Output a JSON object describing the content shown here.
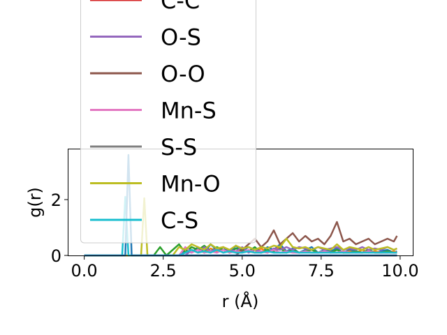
{
  "chart_data": {
    "type": "line",
    "xlabel": "r (Å)",
    "ylabel": "g(r)",
    "xlim": [
      -0.5,
      10.4
    ],
    "ylim": [
      0,
      3.8
    ],
    "x_ticks": [
      0.0,
      2.5,
      5.0,
      7.5,
      10.0
    ],
    "x_tick_labels": [
      "0.0",
      "2.5",
      "5.0",
      "7.5",
      "10.0"
    ],
    "y_ticks": [
      0,
      2
    ],
    "y_tick_labels": [
      "0",
      "2"
    ],
    "legend_position": "upper-left (overflowing above the axes)",
    "x": [
      0.0,
      0.5,
      1.0,
      1.2,
      1.3,
      1.4,
      1.5,
      1.6,
      1.8,
      1.9,
      2.0,
      2.2,
      2.4,
      2.6,
      2.8,
      3.0,
      3.2,
      3.4,
      3.6,
      3.8,
      4.0,
      4.2,
      4.4,
      4.6,
      4.8,
      5.0,
      5.2,
      5.4,
      5.6,
      5.8,
      6.0,
      6.2,
      6.4,
      6.6,
      6.8,
      7.0,
      7.2,
      7.4,
      7.6,
      7.8,
      8.0,
      8.2,
      8.4,
      8.6,
      8.8,
      9.0,
      9.2,
      9.4,
      9.6,
      9.8,
      9.9
    ],
    "series": [
      {
        "name": "",
        "color": "#1f77b4",
        "values": [
          0,
          0,
          0,
          0,
          0,
          0,
          0,
          0,
          0,
          0,
          0,
          0,
          0,
          0,
          0,
          0,
          0.2,
          0.1,
          0.3,
          0.1,
          0.4,
          0.2,
          0.3,
          0.1,
          0.35,
          0.15,
          0.3,
          0.2,
          0.1,
          0.3,
          0.2,
          0.4,
          0.15,
          0.25,
          0.1,
          0.2,
          0.3,
          0.1,
          0.2,
          0.15,
          0.25,
          0.1,
          0.2,
          0.15,
          0.1,
          0.2,
          0.1,
          0.15,
          0.2,
          0.1,
          0.15
        ]
      },
      {
        "name": "",
        "color": "#ff7f0e",
        "values": [
          0,
          0,
          0,
          0,
          0,
          0,
          0,
          0,
          0,
          0,
          0,
          0,
          0,
          0,
          0,
          0,
          0.1,
          0.3,
          0.2,
          0.1,
          0.25,
          0.15,
          0.3,
          0.2,
          0.1,
          0.2,
          0.15,
          0.1,
          0.25,
          0.1,
          0.2,
          0.3,
          0.1,
          0.2,
          0.1,
          0.15,
          0.2,
          0.1,
          0.15,
          0.1,
          0.2,
          0.1,
          0.15,
          0.1,
          0.2,
          0.1,
          0.15,
          0.1,
          0.1,
          0.15,
          0.1
        ]
      },
      {
        "name": "",
        "color": "#2ca02c",
        "values": [
          0,
          0,
          0,
          0,
          0,
          0,
          0,
          0,
          0,
          0,
          0,
          0,
          0.3,
          0,
          0.2,
          0.4,
          0.1,
          0.3,
          0.2,
          0.35,
          0.15,
          0.3,
          0.2,
          0.1,
          0.25,
          0.2,
          0.15,
          0.3,
          0.1,
          0.2,
          0.15,
          0.25,
          0.1,
          0.2,
          0.1,
          0.15,
          0.2,
          0.1,
          0.15,
          0.1,
          0.2,
          0.1,
          0.1,
          0.15,
          0.1,
          0.2,
          0.1,
          0.1,
          0.15,
          0.1,
          0.1
        ]
      },
      {
        "name": "C-C",
        "color": "#d62728",
        "values": [
          0,
          0,
          0,
          0,
          0,
          0,
          0,
          0,
          0,
          0,
          0,
          0,
          0,
          0,
          0,
          0,
          0,
          0,
          0,
          0,
          0,
          0,
          0,
          0,
          0,
          0,
          0,
          0,
          0,
          0,
          0,
          0,
          0,
          0,
          0,
          0,
          0,
          0,
          0,
          0,
          0,
          0,
          0,
          0,
          0,
          0,
          0,
          0,
          0,
          0,
          0
        ]
      },
      {
        "name": "O-S",
        "color": "#9467bd",
        "values": [
          0,
          0,
          0,
          0,
          0,
          0,
          0,
          0,
          0,
          0,
          0,
          0,
          0,
          0,
          0,
          0,
          0,
          0.2,
          0.1,
          0.3,
          0.15,
          0.25,
          0.1,
          0.2,
          0.15,
          0.3,
          0.1,
          0.2,
          0.15,
          0.1,
          0.25,
          0.2,
          0.3,
          0.2,
          0.3,
          0.25,
          0.2,
          0.3,
          0.2,
          0.25,
          0.3,
          0.2,
          0.25,
          0.2,
          0.3,
          0.2,
          0.25,
          0.2,
          0.3,
          0.2,
          0.25
        ]
      },
      {
        "name": "O-O",
        "color": "#8c564b",
        "values": [
          0,
          0,
          0,
          0,
          0,
          0,
          0,
          0,
          0,
          0,
          0,
          0,
          0,
          0,
          0,
          0,
          0,
          0,
          0,
          0,
          0,
          0,
          0,
          0,
          0,
          0.2,
          0.4,
          0.6,
          0.3,
          0.5,
          0.9,
          0.4,
          0.6,
          0.8,
          0.5,
          0.7,
          0.5,
          0.6,
          0.4,
          0.7,
          1.2,
          0.5,
          0.6,
          0.4,
          0.5,
          0.6,
          0.4,
          0.5,
          0.6,
          0.5,
          0.7
        ]
      },
      {
        "name": "Mn-S",
        "color": "#e377c2",
        "values": [
          0,
          0,
          0,
          0,
          0,
          0,
          0,
          0,
          0,
          0,
          0,
          0,
          0,
          0,
          0,
          0,
          0.3,
          0.1,
          0.2,
          0.1,
          0.15,
          0.1,
          0.2,
          0.1,
          0.15,
          0.1,
          0.2,
          0.1,
          0.15,
          0.1,
          0.2,
          0.1,
          0.15,
          0.1,
          0.1,
          0.15,
          0.1,
          0.1,
          0.15,
          0.1,
          0.1,
          0.15,
          0.1,
          0.1,
          0.1,
          0.15,
          0.1,
          0.1,
          0.1,
          0.1,
          0.1
        ]
      },
      {
        "name": "S-S",
        "color": "#7f7f7f",
        "values": [
          0,
          0,
          0,
          0,
          0,
          0,
          0,
          0,
          0,
          0,
          0,
          0,
          0,
          0,
          0,
          0,
          0,
          0,
          0,
          0,
          0,
          0,
          0,
          0,
          0,
          0,
          0,
          0,
          0,
          0,
          0,
          0,
          0,
          0,
          0,
          0,
          0,
          0,
          0,
          0,
          0,
          0,
          0,
          0,
          0,
          0,
          0,
          0,
          0,
          0,
          0
        ]
      },
      {
        "name": "Mn-O",
        "color": "#bcbd22",
        "values": [
          0,
          0,
          0,
          0,
          0,
          0,
          0,
          0,
          0,
          2.05,
          0,
          0,
          0,
          0,
          0,
          0.3,
          0.2,
          0.4,
          0.3,
          0.2,
          0.4,
          0.25,
          0.3,
          0.2,
          0.35,
          0.25,
          0.3,
          0.2,
          0.3,
          0.25,
          0.35,
          0.3,
          0.6,
          0.3,
          0.25,
          0.3,
          0.2,
          0.3,
          0.25,
          0.2,
          0.4,
          0.2,
          0.3,
          0.25,
          0.2,
          0.3,
          0.2,
          0.25,
          0.3,
          0.2,
          0.25
        ]
      },
      {
        "name": "C-S",
        "color": "#17becf",
        "values": [
          0,
          0,
          0,
          0,
          2.1,
          0,
          0,
          0,
          0,
          0,
          0,
          0,
          0,
          0,
          0,
          0,
          0.1,
          0.2,
          0.1,
          0.15,
          0.1,
          0.2,
          0.1,
          0.15,
          0.1,
          0.1,
          0.15,
          0.1,
          0.1,
          0.15,
          0.1,
          0.1,
          0.1,
          0.15,
          0.1,
          0.1,
          0.1,
          0.1,
          0.1,
          0.1,
          0.1,
          0.1,
          0.1,
          0.1,
          0.1,
          0.1,
          0.1,
          0.1,
          0.1,
          0.1,
          0.1
        ]
      },
      {
        "name": "",
        "color": "#1f77b4",
        "values": [
          0,
          0,
          0,
          0,
          0,
          3.6,
          0,
          0,
          0,
          0,
          0,
          0,
          0,
          0,
          0,
          0,
          0,
          0,
          0,
          0,
          0,
          0,
          0,
          0,
          0,
          0,
          0,
          0,
          0,
          0,
          0,
          0,
          0,
          0,
          0,
          0,
          0,
          0,
          0,
          0,
          0,
          0,
          0,
          0,
          0,
          0,
          0,
          0,
          0,
          0,
          0
        ]
      }
    ]
  }
}
